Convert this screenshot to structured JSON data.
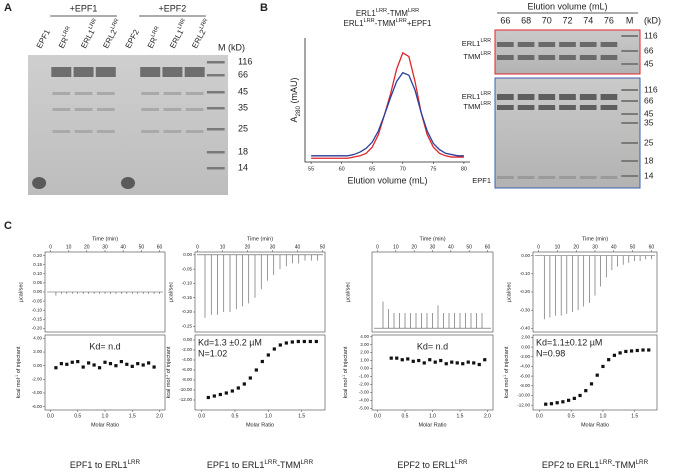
{
  "panel_a": {
    "label": "A",
    "groups": [
      "+EPF1",
      "+EPF2"
    ],
    "lanes": [
      [
        {
          "text": "EPF1"
        }
      ],
      [
        {
          "text": "ER"
        },
        {
          "text": "LRR",
          "style": "sup"
        }
      ],
      [
        {
          "text": "ERL1"
        },
        {
          "text": "LRR",
          "style": "sup"
        }
      ],
      [
        {
          "text": "ERL2"
        },
        {
          "text": "LRR",
          "style": "sup"
        }
      ],
      [
        {
          "text": "EPF2"
        }
      ],
      [
        {
          "text": "ER"
        },
        {
          "text": "LRR",
          "style": "sup"
        }
      ],
      [
        {
          "text": "ERL1"
        },
        {
          "text": "LRR",
          "style": "sup"
        }
      ],
      [
        {
          "text": "ERL2"
        },
        {
          "text": "LRR",
          "style": "sup"
        }
      ]
    ],
    "marker_title": "M (kD)",
    "markers": [
      116,
      66,
      45,
      35,
      25,
      18,
      14
    ]
  },
  "panel_b": {
    "label": "B",
    "chart": {
      "type": "line",
      "ylabel": [
        {
          "text": "A"
        },
        {
          "text": "280",
          "style": "sub"
        },
        {
          "text": " (mAU)"
        }
      ],
      "xlabel": "Elution volume (mL)",
      "xlim": [
        54,
        81
      ],
      "ylim": [
        0,
        100
      ],
      "xticks": [
        55,
        60,
        65,
        70,
        75,
        80
      ],
      "x": [
        55,
        56,
        57,
        58,
        59,
        60,
        61,
        62,
        63,
        64,
        65,
        66,
        67,
        68,
        69,
        70,
        71,
        72,
        73,
        74,
        75,
        76,
        77,
        78,
        79,
        80
      ],
      "series": [
        {
          "label": [
            {
              "text": "ERL1"
            },
            {
              "text": "LRR",
              "style": "sup"
            },
            {
              "text": "-TMM"
            },
            {
              "text": "LRR",
              "style": "sup"
            }
          ],
          "color": "#e0262b",
          "values": [
            3,
            3,
            3,
            3,
            3,
            3,
            3,
            4,
            5,
            7,
            12,
            22,
            38,
            55,
            75,
            88,
            85,
            65,
            40,
            22,
            12,
            7,
            5,
            4,
            4,
            4
          ]
        },
        {
          "label": [
            {
              "text": "ERL1"
            },
            {
              "text": "LRR",
              "style": "sup"
            },
            {
              "text": "-TMM"
            },
            {
              "text": "LRR",
              "style": "sup"
            },
            {
              "text": "+EPF1"
            }
          ],
          "color": "#2b3f9c",
          "values": [
            5,
            5,
            5,
            5,
            5,
            5,
            5,
            6,
            8,
            11,
            16,
            25,
            38,
            52,
            65,
            72,
            70,
            58,
            40,
            25,
            15,
            10,
            7,
            6,
            5,
            5
          ]
        }
      ]
    },
    "gel": {
      "title": "Elution volume (mL)",
      "lanes": [
        66,
        68,
        70,
        72,
        74,
        76
      ],
      "marker_lane": "M",
      "marker_unit": "(kD)",
      "top_markers": [
        116,
        66,
        45
      ],
      "bottom_markers": [
        116,
        66,
        45,
        35,
        25,
        18,
        14
      ],
      "top_labels": [
        [
          {
            "text": "ERL1"
          },
          {
            "text": "LRR",
            "style": "sup"
          }
        ],
        [
          {
            "text": "TMM"
          },
          {
            "text": "LRR",
            "style": "sup"
          }
        ]
      ],
      "bottom_labels": [
        [
          {
            "text": "ERL1"
          },
          {
            "text": "LRR",
            "style": "sup"
          }
        ],
        [
          {
            "text": "TMM"
          },
          {
            "text": "LRR",
            "style": "sup"
          }
        ],
        [
          {
            "text": "EPF1"
          }
        ]
      ]
    }
  },
  "panel_c": {
    "label": "C",
    "itc": [
      {
        "caption": [
          {
            "text": "EPF1 to ERL1"
          },
          {
            "text": "LRR",
            "style": "sup"
          }
        ],
        "time_label": "Time (min)",
        "time_lim": [
          -3,
          63
        ],
        "time_ticks": [
          0,
          10,
          20,
          30,
          40,
          50,
          60
        ],
        "raw_label": "µcal/sec",
        "raw_lim": [
          -0.22,
          0.22
        ],
        "raw_ticks": [
          {
            "value": 0.2,
            "label": "0.20"
          },
          {
            "value": 0.15,
            "label": "0.15"
          },
          {
            "value": 0.1,
            "label": "0.10"
          },
          {
            "value": 0.05,
            "label": "0.05"
          },
          {
            "value": 0,
            "label": "0.00"
          },
          {
            "value": -0.05,
            "label": "-0.05"
          },
          {
            "value": -0.1,
            "label": "-0.10"
          },
          {
            "value": -0.15,
            "label": "-0.15"
          },
          {
            "value": -0.2,
            "label": "-0.20"
          }
        ],
        "times": [
          3,
          6,
          9,
          12,
          15,
          18,
          21,
          24,
          27,
          30,
          33,
          36,
          39,
          42,
          45,
          48,
          51,
          54,
          57,
          60
        ],
        "peaks": [
          -0.02,
          -0.01,
          -0.01,
          -0.01,
          -0.01,
          -0.01,
          -0.01,
          -0.01,
          -0.01,
          -0.01,
          -0.01,
          -0.01,
          -0.01,
          -0.01,
          -0.01,
          -0.01,
          -0.01,
          -0.01,
          -0.01,
          -0.01
        ],
        "heat_label": [
          {
            "text": "kcal mol"
          },
          {
            "text": "-1",
            "style": "sup"
          },
          {
            "text": " of injectant"
          }
        ],
        "heat_lim": [
          -6.5,
          4.5
        ],
        "heat_ticks": [
          {
            "value": 4,
            "label": "4.00"
          },
          {
            "value": 2,
            "label": "2.00"
          },
          {
            "value": 0,
            "label": "0.00"
          },
          {
            "value": -2,
            "label": "-2.00"
          },
          {
            "value": -4,
            "label": "-4.00"
          },
          {
            "value": -6,
            "label": "-6.00"
          }
        ],
        "ratio_label": "Molar Ratio",
        "ratio_lim": [
          -0.1,
          2.1
        ],
        "ratio_ticks": [
          {
            "value": 0,
            "label": "0.0"
          },
          0.5,
          {
            "value": 1,
            "label": "1.0"
          },
          1.5,
          {
            "value": 2,
            "label": "2.0"
          }
        ],
        "ratio": [
          0.1,
          0.2,
          0.3,
          0.4,
          0.5,
          0.6,
          0.7,
          0.8,
          0.9,
          1.0,
          1.1,
          1.2,
          1.3,
          1.4,
          1.5,
          1.6,
          1.7,
          1.8,
          1.9
        ],
        "heat": [
          -0.3,
          0.3,
          0.2,
          0.5,
          0.6,
          -0.2,
          0.4,
          0.1,
          -0.3,
          0.5,
          0.3,
          0.0,
          0.6,
          0.2,
          -0.1,
          0.3,
          0.1,
          0.4,
          -0.2
        ],
        "annotation": [
          "Kd= n.d"
        ]
      },
      {
        "caption": [
          {
            "text": "EPF1 to ERL1"
          },
          {
            "text": "LRR",
            "style": "sup"
          },
          {
            "text": "-TMM"
          },
          {
            "text": "LRR",
            "style": "sup"
          }
        ],
        "time_label": "Time (min)",
        "time_lim": [
          -1,
          51
        ],
        "time_ticks": [
          0,
          10,
          20,
          30,
          40,
          50
        ],
        "raw_label": "µcal/sec",
        "raw_lim": [
          -0.27,
          0.01
        ],
        "raw_ticks": [
          {
            "value": 0,
            "label": "0.00"
          },
          {
            "value": -0.05,
            "label": "-0.05"
          },
          {
            "value": -0.1,
            "label": "-0.10"
          },
          {
            "value": -0.15,
            "label": "-0.15"
          },
          {
            "value": -0.2,
            "label": "-0.20"
          },
          {
            "value": -0.25,
            "label": "-0.25"
          }
        ],
        "times": [
          3,
          5.5,
          8,
          10.5,
          13,
          15.5,
          18,
          20.5,
          23,
          25.5,
          28,
          30.5,
          33,
          35.5,
          38,
          40.5,
          43,
          45.5,
          48
        ],
        "peaks": [
          -0.22,
          -0.21,
          -0.21,
          -0.2,
          -0.2,
          -0.19,
          -0.18,
          -0.17,
          -0.15,
          -0.12,
          -0.09,
          -0.07,
          -0.05,
          -0.04,
          -0.03,
          -0.03,
          -0.02,
          -0.02,
          -0.02
        ],
        "heat_label": [
          {
            "text": "kcal mol"
          },
          {
            "text": "-1",
            "style": "sup"
          },
          {
            "text": " of injectant"
          }
        ],
        "heat_lim": [
          -14,
          1
        ],
        "heat_ticks": [
          {
            "value": 0,
            "label": "0.00"
          },
          {
            "value": -2,
            "label": "-2.00"
          },
          {
            "value": -4,
            "label": "-4.00"
          },
          {
            "value": -6,
            "label": "-6.00"
          },
          {
            "value": -8,
            "label": "-8.00"
          },
          {
            "value": -10,
            "label": "-10.00"
          },
          {
            "value": -12,
            "label": "-12.00"
          }
        ],
        "ratio_label": "Molar Ratio",
        "ratio_lim": [
          -0.1,
          1.85
        ],
        "ratio_ticks": [
          {
            "value": 0,
            "label": "0.0"
          },
          0.5,
          {
            "value": 1,
            "label": "1.0"
          },
          1.5
        ],
        "ratio": [
          0.1,
          0.19,
          0.28,
          0.37,
          0.46,
          0.55,
          0.64,
          0.73,
          0.82,
          0.91,
          1.0,
          1.09,
          1.18,
          1.27,
          1.36,
          1.45,
          1.54,
          1.63,
          1.72
        ],
        "heat": [
          -11.5,
          -11.2,
          -10.9,
          -10.6,
          -10.2,
          -9.6,
          -8.8,
          -7.6,
          -6.0,
          -4.3,
          -3.0,
          -1.8,
          -1.0,
          -0.6,
          -0.4,
          -0.3,
          -0.3,
          -0.3,
          -0.3
        ],
        "annotation": [
          "Kd=1.3 ±0.2 µM",
          "N=1.02"
        ]
      },
      {
        "caption": [
          {
            "text": "EPF2 to ERL1"
          },
          {
            "text": "LRR",
            "style": "sup"
          }
        ],
        "time_label": "Time (min)",
        "time_lim": [
          -3,
          63
        ],
        "time_ticks": [
          0,
          10,
          20,
          30,
          40,
          50,
          60
        ],
        "raw_label": "µcal/sec",
        "raw_lim": [
          -0.01,
          0.2
        ],
        "times": [
          3,
          6,
          9,
          12,
          15,
          18,
          21,
          24,
          27,
          30,
          33,
          36,
          39,
          42,
          45,
          48,
          51,
          54,
          57
        ],
        "peaks": [
          0.07,
          0.05,
          0.04,
          0.04,
          0.04,
          0.04,
          0.04,
          0.04,
          0.04,
          0.04,
          0.06,
          0.04,
          0.04,
          0.04,
          0.04,
          0.04,
          0.04,
          0.04,
          0.04
        ],
        "heat_label": [
          {
            "text": "kcal mol"
          },
          {
            "text": "-1",
            "style": "sup"
          },
          {
            "text": " of injectant"
          }
        ],
        "heat_lim": [
          -5.2,
          4.2
        ],
        "heat_ticks": [
          {
            "value": 4,
            "label": "4.00"
          },
          {
            "value": 3,
            "label": "3.00"
          },
          {
            "value": 2,
            "label": "2.00"
          },
          {
            "value": 1,
            "label": "1.00"
          },
          {
            "value": 0,
            "label": "0.00"
          },
          {
            "value": -1,
            "label": "-1.00"
          },
          {
            "value": -2,
            "label": "-2.00"
          },
          {
            "value": -3,
            "label": "-3.00"
          },
          {
            "value": -4,
            "label": "-4.00"
          },
          {
            "value": -5,
            "label": "-5.00"
          }
        ],
        "ratio_label": "Molar Ratio",
        "ratio_lim": [
          -0.1,
          2.1
        ],
        "ratio_ticks": [
          {
            "value": 0,
            "label": "0.0"
          },
          0.5,
          {
            "value": 1,
            "label": "1.0"
          },
          1.5,
          {
            "value": 2,
            "label": "2.0"
          }
        ],
        "ratio": [
          0.25,
          0.35,
          0.45,
          0.55,
          0.65,
          0.75,
          0.85,
          0.95,
          1.05,
          1.15,
          1.25,
          1.35,
          1.45,
          1.55,
          1.65,
          1.75,
          1.85,
          1.95
        ],
        "heat": [
          1.3,
          1.3,
          1.1,
          1.2,
          0.9,
          1.0,
          0.7,
          1.1,
          0.8,
          1.0,
          0.6,
          0.8,
          0.7,
          0.6,
          0.8,
          0.7,
          0.5,
          1.1
        ],
        "annotation": [
          "Kd= n.d"
        ]
      },
      {
        "caption": [
          {
            "text": "EPF2 to ERL1"
          },
          {
            "text": "LRR",
            "style": "sup"
          },
          {
            "text": "-TMM"
          },
          {
            "text": "LRR",
            "style": "sup"
          }
        ],
        "time_label": "Time (min)",
        "time_lim": [
          -3,
          63
        ],
        "time_ticks": [
          0,
          10,
          20,
          30,
          40,
          50,
          60
        ],
        "raw_label": "µcal/sec",
        "raw_lim": [
          -0.42,
          0.02
        ],
        "raw_ticks": [
          {
            "value": 0,
            "label": "0.00"
          },
          {
            "value": -0.1,
            "label": "-0.10"
          },
          {
            "value": -0.2,
            "label": "-0.20"
          },
          {
            "value": -0.3,
            "label": "-0.30"
          },
          {
            "value": -0.4,
            "label": "-0.40"
          }
        ],
        "times": [
          3,
          6,
          9,
          12,
          15,
          18,
          21,
          24,
          27,
          30,
          33,
          36,
          39,
          42,
          45,
          48,
          51,
          54,
          57,
          60
        ],
        "peaks": [
          -0.35,
          -0.34,
          -0.33,
          -0.33,
          -0.32,
          -0.31,
          -0.3,
          -0.28,
          -0.26,
          -0.22,
          -0.17,
          -0.12,
          -0.08,
          -0.06,
          -0.05,
          -0.04,
          -0.03,
          -0.03,
          -0.02,
          -0.02
        ],
        "heat_label": [
          {
            "text": "kcal mol"
          },
          {
            "text": "-1",
            "style": "sup"
          },
          {
            "text": " of injectant"
          }
        ],
        "heat_lim": [
          -13,
          2.5
        ],
        "heat_ticks": [
          {
            "value": 2,
            "label": "2.00"
          },
          {
            "value": 0,
            "label": "0.00"
          },
          {
            "value": -2,
            "label": "-2.00"
          },
          {
            "value": -4,
            "label": "-4.00"
          },
          {
            "value": -6,
            "label": "-6.00"
          },
          {
            "value": -8,
            "label": "-8.00"
          },
          {
            "value": -10,
            "label": "-10.00"
          },
          {
            "value": -12,
            "label": "-12.00"
          }
        ],
        "ratio_label": "Molar Ratio",
        "ratio_lim": [
          -0.1,
          1.85
        ],
        "ratio_ticks": [
          {
            "value": 0,
            "label": "0.0"
          },
          0.5,
          {
            "value": 1,
            "label": "1.0"
          },
          1.5
        ],
        "ratio": [
          0.1,
          0.19,
          0.28,
          0.37,
          0.46,
          0.55,
          0.64,
          0.73,
          0.82,
          0.91,
          1.0,
          1.09,
          1.18,
          1.27,
          1.36,
          1.45,
          1.54,
          1.63,
          1.72
        ],
        "heat": [
          -11.8,
          -11.7,
          -11.5,
          -11.3,
          -11.0,
          -10.6,
          -10.0,
          -9.0,
          -7.6,
          -5.8,
          -4.0,
          -2.6,
          -1.7,
          -1.2,
          -0.9,
          -0.8,
          -0.7,
          -0.6,
          -0.6
        ],
        "annotation": [
          "Kd=1.1±0.12 µM",
          "N=0.98"
        ]
      }
    ]
  }
}
